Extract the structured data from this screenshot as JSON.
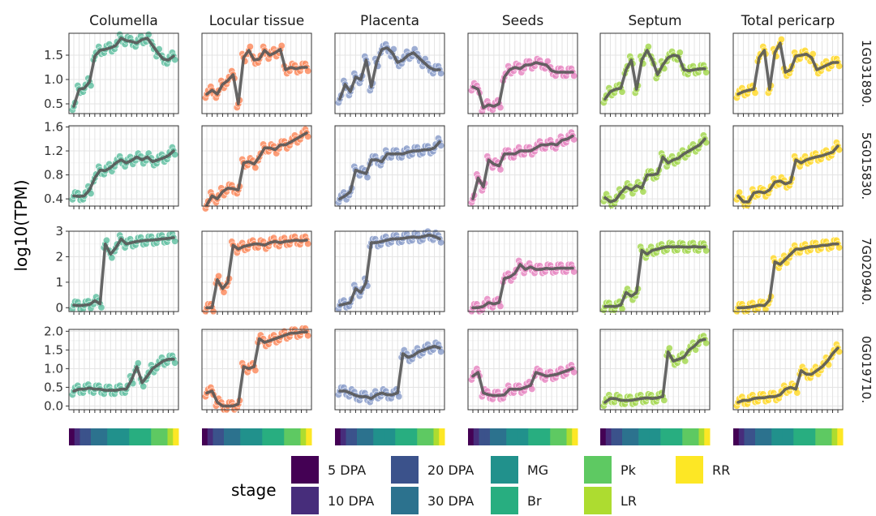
{
  "chart_data": {
    "type": "line",
    "ylabel": "log10(TPM)",
    "columns": [
      "Columella",
      "Locular tissue",
      "Placenta",
      "Seeds",
      "Septum",
      "Total pericarp"
    ],
    "column_colors": [
      "#66c2a5",
      "#fc8d62",
      "#8da0cb",
      "#e78ac3",
      "#a6d854",
      "#ffd92f"
    ],
    "rows": [
      {
        "label": "1G031890.",
        "ylim": [
          0.3,
          1.95
        ],
        "yticks": [
          "0.5",
          "1.0",
          "1.5"
        ],
        "ytick_values": [
          0.5,
          1.0,
          1.5
        ]
      },
      {
        "label": "5G015830.",
        "ylim": [
          0.28,
          1.62
        ],
        "yticks": [
          "0.4",
          "0.8",
          "1.2",
          "1.6"
        ],
        "ytick_values": [
          0.4,
          0.8,
          1.2,
          1.6
        ]
      },
      {
        "label": "7G020940.",
        "ylim": [
          -0.15,
          3.0
        ],
        "yticks": [
          "0",
          "1",
          "2",
          "3"
        ],
        "ytick_values": [
          0,
          1,
          2,
          3
        ]
      },
      {
        "label": "0G019710.",
        "ylim": [
          -0.1,
          2.05
        ],
        "yticks": [
          "0.0",
          "0.5",
          "1.0",
          "1.5",
          "2.0"
        ],
        "ytick_values": [
          0.0,
          0.5,
          1.0,
          1.5,
          2.0
        ]
      }
    ],
    "x": [
      1,
      2,
      3,
      4,
      5,
      6,
      7,
      8,
      9,
      10,
      11,
      12,
      13,
      14,
      15,
      16,
      17,
      18,
      19,
      20
    ],
    "series": [
      [
        [
          0.45,
          0.8,
          0.82,
          0.95,
          1.48,
          1.6,
          1.62,
          1.65,
          1.7,
          1.85,
          1.8,
          1.78,
          1.75,
          1.82,
          1.85,
          1.7,
          1.55,
          1.42,
          1.4,
          1.48
        ],
        [
          0.7,
          0.78,
          0.7,
          0.9,
          0.98,
          1.1,
          0.5,
          1.45,
          1.6,
          1.4,
          1.42,
          1.6,
          1.5,
          1.55,
          1.62,
          1.2,
          1.25,
          1.22,
          1.25,
          1.25
        ],
        [
          0.6,
          0.9,
          0.75,
          1.05,
          1.0,
          1.4,
          0.85,
          1.35,
          1.62,
          1.65,
          1.55,
          1.35,
          1.4,
          1.5,
          1.55,
          1.45,
          1.35,
          1.25,
          1.2,
          1.2
        ],
        [
          0.85,
          0.8,
          0.42,
          0.48,
          0.45,
          0.5,
          1.05,
          1.2,
          1.25,
          1.22,
          1.3,
          1.3,
          1.35,
          1.32,
          1.3,
          1.18,
          1.15,
          1.15,
          1.15,
          1.15
        ],
        [
          0.6,
          0.75,
          0.8,
          0.82,
          1.2,
          1.4,
          0.8,
          1.4,
          1.6,
          1.4,
          1.1,
          1.3,
          1.45,
          1.5,
          1.48,
          1.2,
          1.18,
          1.2,
          1.22,
          1.22
        ],
        [
          0.7,
          0.75,
          0.78,
          0.8,
          1.45,
          1.6,
          0.8,
          1.55,
          1.75,
          1.15,
          1.2,
          1.48,
          1.5,
          1.52,
          1.45,
          1.2,
          1.25,
          1.3,
          1.35,
          1.35
        ]
      ],
      [
        [
          0.45,
          0.44,
          0.45,
          0.55,
          0.75,
          0.88,
          0.87,
          0.92,
          1.0,
          1.05,
          1.0,
          1.04,
          1.1,
          1.05,
          1.1,
          1.02,
          1.05,
          1.08,
          1.12,
          1.2
        ],
        [
          0.3,
          0.45,
          0.4,
          0.52,
          0.58,
          0.57,
          0.55,
          1.0,
          1.02,
          0.98,
          1.1,
          1.25,
          1.25,
          1.22,
          1.3,
          1.3,
          1.35,
          1.4,
          1.45,
          1.5
        ],
        [
          0.4,
          0.45,
          0.52,
          0.88,
          0.85,
          0.82,
          1.05,
          1.05,
          1.02,
          1.15,
          1.15,
          1.15,
          1.15,
          1.18,
          1.2,
          1.2,
          1.22,
          1.22,
          1.25,
          1.35
        ],
        [
          0.4,
          0.75,
          0.6,
          1.05,
          0.98,
          0.95,
          1.15,
          1.15,
          1.15,
          1.2,
          1.2,
          1.2,
          1.25,
          1.3,
          1.3,
          1.32,
          1.3,
          1.38,
          1.4,
          1.45
        ],
        [
          0.42,
          0.35,
          0.38,
          0.5,
          0.6,
          0.55,
          0.62,
          0.58,
          0.8,
          0.8,
          0.82,
          1.1,
          1.0,
          1.05,
          1.08,
          1.15,
          1.2,
          1.25,
          1.3,
          1.4
        ],
        [
          0.45,
          0.35,
          0.35,
          0.5,
          0.52,
          0.5,
          0.55,
          0.68,
          0.7,
          0.65,
          0.68,
          1.05,
          1.0,
          1.05,
          1.08,
          1.1,
          1.12,
          1.15,
          1.18,
          1.28
        ]
      ],
      [
        [
          0.1,
          0.08,
          0.1,
          0.12,
          0.28,
          0.15,
          2.5,
          2.1,
          2.35,
          2.7,
          2.5,
          2.55,
          2.6,
          2.62,
          2.65,
          2.65,
          2.68,
          2.7,
          2.72,
          2.75
        ],
        [
          0.0,
          0.0,
          1.1,
          0.75,
          1.0,
          2.45,
          2.3,
          2.4,
          2.45,
          2.5,
          2.5,
          2.45,
          2.55,
          2.6,
          2.55,
          2.6,
          2.62,
          2.65,
          2.62,
          2.65
        ],
        [
          0.1,
          0.15,
          0.2,
          0.75,
          0.6,
          1.0,
          2.55,
          2.55,
          2.6,
          2.65,
          2.7,
          2.7,
          2.72,
          2.75,
          2.78,
          2.75,
          2.8,
          2.85,
          2.8,
          2.7
        ],
        [
          0.0,
          0.0,
          0.05,
          0.2,
          0.15,
          0.2,
          1.15,
          1.2,
          1.35,
          1.7,
          1.5,
          1.6,
          1.5,
          1.5,
          1.55,
          1.52,
          1.55,
          1.55,
          1.55,
          1.55
        ],
        [
          0.05,
          0.05,
          0.05,
          0.1,
          0.6,
          0.45,
          0.6,
          2.25,
          2.1,
          2.25,
          2.3,
          2.35,
          2.4,
          2.38,
          2.4,
          2.38,
          2.38,
          2.4,
          2.38,
          2.38
        ],
        [
          0.0,
          0.0,
          0.02,
          0.05,
          0.1,
          0.08,
          0.3,
          1.8,
          1.7,
          1.9,
          2.1,
          2.3,
          2.3,
          2.35,
          2.4,
          2.4,
          2.45,
          2.45,
          2.5,
          2.5
        ]
      ],
      [
        [
          0.4,
          0.45,
          0.45,
          0.48,
          0.45,
          0.45,
          0.42,
          0.42,
          0.42,
          0.45,
          0.45,
          0.7,
          1.05,
          0.62,
          0.8,
          1.0,
          1.1,
          1.2,
          1.25,
          1.25
        ],
        [
          0.35,
          0.4,
          0.1,
          0.0,
          0.0,
          0.0,
          0.05,
          1.05,
          1.0,
          1.05,
          1.8,
          1.7,
          1.75,
          1.8,
          1.85,
          1.9,
          1.95,
          1.95,
          1.98,
          1.98
        ],
        [
          0.4,
          0.4,
          0.35,
          0.28,
          0.25,
          0.25,
          0.2,
          0.3,
          0.35,
          0.3,
          0.3,
          0.35,
          1.4,
          1.3,
          1.35,
          1.45,
          1.5,
          1.55,
          1.6,
          1.55
        ],
        [
          0.8,
          0.9,
          0.35,
          0.3,
          0.28,
          0.28,
          0.3,
          0.45,
          0.45,
          0.45,
          0.5,
          0.55,
          0.9,
          0.85,
          0.8,
          0.82,
          0.85,
          0.9,
          0.95,
          1.0
        ],
        [
          0.1,
          0.2,
          0.2,
          0.15,
          0.15,
          0.15,
          0.18,
          0.2,
          0.22,
          0.2,
          0.22,
          0.25,
          1.45,
          1.2,
          1.25,
          1.3,
          1.5,
          1.6,
          1.75,
          1.78
        ],
        [
          0.1,
          0.15,
          0.15,
          0.2,
          0.22,
          0.22,
          0.25,
          0.25,
          0.3,
          0.45,
          0.5,
          0.45,
          0.95,
          0.85,
          0.85,
          0.95,
          1.05,
          1.2,
          1.4,
          1.55
        ]
      ]
    ],
    "stage_bar": [
      0,
      1,
      2,
      2,
      3,
      3,
      3,
      4,
      4,
      4,
      4,
      5,
      5,
      5,
      5,
      6,
      6,
      6,
      7,
      8
    ],
    "legend": {
      "title": "stage",
      "items": [
        {
          "label": "5 DPA",
          "color": "#440154"
        },
        {
          "label": "10 DPA",
          "color": "#472d7b"
        },
        {
          "label": "20 DPA",
          "color": "#3b528b"
        },
        {
          "label": "30 DPA",
          "color": "#2c728e"
        },
        {
          "label": "MG",
          "color": "#21918c"
        },
        {
          "label": "Br",
          "color": "#28ae80"
        },
        {
          "label": "Pk",
          "color": "#5ec962"
        },
        {
          "label": "LR",
          "color": "#addc30"
        },
        {
          "label": "RR",
          "color": "#fde725"
        }
      ]
    },
    "grid": true,
    "line_color": "#555555"
  }
}
